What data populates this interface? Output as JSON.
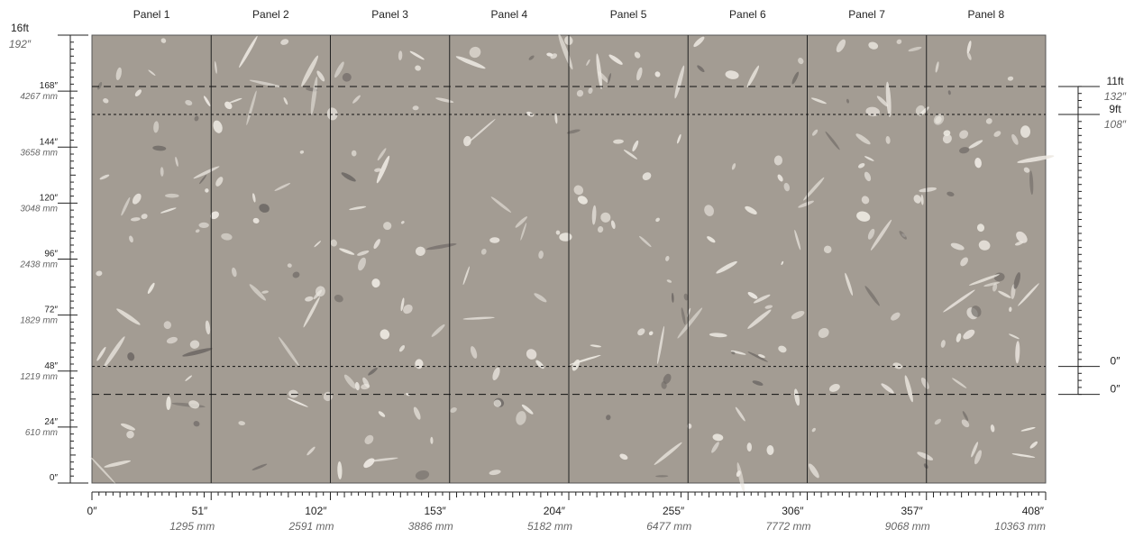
{
  "panels": [
    {
      "label": "Panel 1"
    },
    {
      "label": "Panel 2"
    },
    {
      "label": "Panel 3"
    },
    {
      "label": "Panel 4"
    },
    {
      "label": "Panel 5"
    },
    {
      "label": "Panel 6"
    },
    {
      "label": "Panel 7"
    },
    {
      "label": "Panel 8"
    }
  ],
  "wall_color": "#a39c93",
  "leaf_color": "#ece8e1",
  "x_axis": {
    "range_in": [
      0,
      408
    ],
    "labels": [
      {
        "in": 0,
        "text": "0″",
        "mm": ""
      },
      {
        "in": 51,
        "text": "51″",
        "mm": "1295 mm"
      },
      {
        "in": 102,
        "text": "102″",
        "mm": "2591 mm"
      },
      {
        "in": 153,
        "text": "153″",
        "mm": "3886 mm"
      },
      {
        "in": 204,
        "text": "204″",
        "mm": "5182 mm"
      },
      {
        "in": 255,
        "text": "255″",
        "mm": "6477 mm"
      },
      {
        "in": 306,
        "text": "306″",
        "mm": "7772 mm"
      },
      {
        "in": 357,
        "text": "357″",
        "mm": "9068 mm"
      },
      {
        "in": 408,
        "text": "408″",
        "mm": "10363 mm"
      }
    ]
  },
  "y_axis": {
    "range_in": [
      0,
      192
    ],
    "labels": [
      {
        "in": 192,
        "text": "16ft",
        "sub": "192″"
      },
      {
        "in": 168,
        "text": "168″",
        "sub": "4267 mm"
      },
      {
        "in": 144,
        "text": "144″",
        "sub": "3658 mm"
      },
      {
        "in": 120,
        "text": "120″",
        "sub": "3048 mm"
      },
      {
        "in": 96,
        "text": "96″",
        "sub": "2438 mm"
      },
      {
        "in": 72,
        "text": "72″",
        "sub": "1829 mm"
      },
      {
        "in": 48,
        "text": "48″",
        "sub": "1219 mm"
      },
      {
        "in": 24,
        "text": "24″",
        "sub": "610 mm"
      },
      {
        "in": 0,
        "text": "0″",
        "sub": ""
      }
    ]
  },
  "reference_lines": [
    {
      "in": 170,
      "style": "dashed",
      "right_label": "11ft",
      "right_sub": "132″"
    },
    {
      "in": 158,
      "style": "dotted",
      "right_label": "9ft",
      "right_sub": "108″"
    },
    {
      "in": 50,
      "style": "dotted",
      "right_label": "0″",
      "right_sub": ""
    },
    {
      "in": 38,
      "style": "dashed",
      "right_label": "0″",
      "right_sub": ""
    }
  ]
}
